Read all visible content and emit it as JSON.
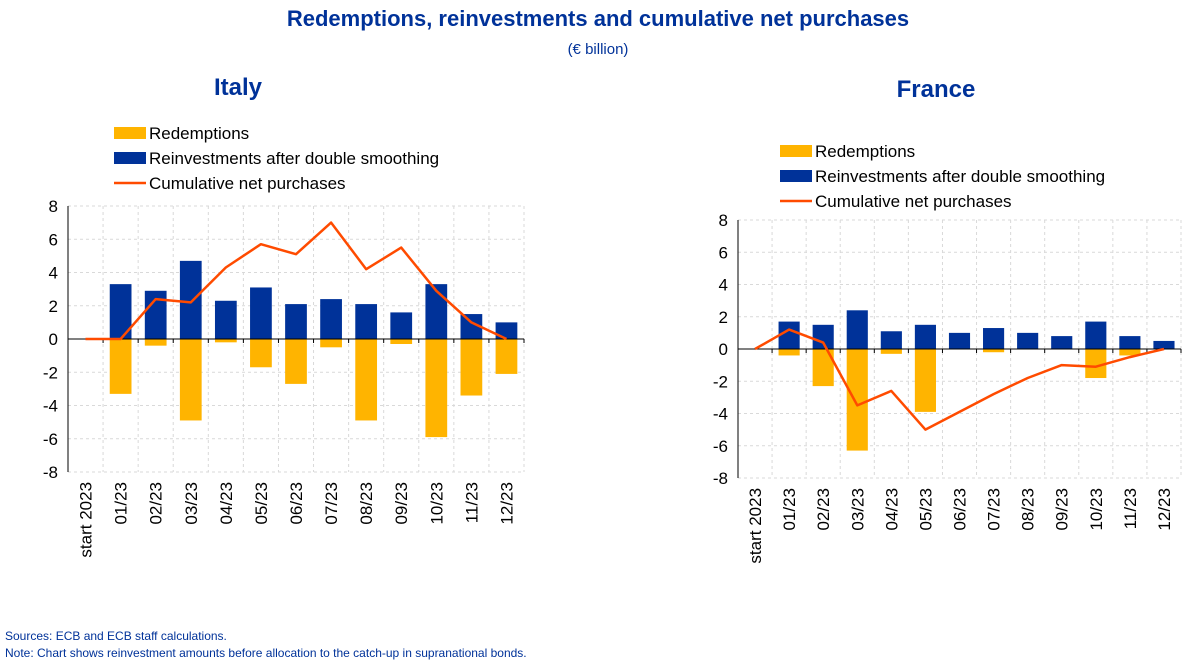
{
  "title": "Redemptions, reinvestments and cumulative net purchases",
  "subtitle": "(€ billion)",
  "colors": {
    "redemptions": "#FFB400",
    "reinvestments": "#003299",
    "cumulative": "#FF4B00",
    "text_blue": "#003299"
  },
  "footer": {
    "sources": "Sources: ECB and ECB staff calculations.",
    "note": "Note: Chart shows reinvestment amounts before allocation to the catch-up in supranational bonds."
  },
  "chart_data": [
    {
      "type": "bar",
      "title": "Italy",
      "categories": [
        "start 2023",
        "01/23",
        "02/23",
        "03/23",
        "04/23",
        "05/23",
        "06/23",
        "07/23",
        "08/23",
        "09/23",
        "10/23",
        "11/23",
        "12/23"
      ],
      "ylim": [
        -8,
        8
      ],
      "yticks": [
        8,
        6,
        4,
        2,
        0,
        -2,
        -4,
        -6,
        -8
      ],
      "grid": true,
      "legend_position": "top-left",
      "series": [
        {
          "name": "Redemptions",
          "kind": "bar",
          "values": [
            0,
            -3.3,
            -0.4,
            -4.9,
            -0.2,
            -1.7,
            -2.7,
            -0.5,
            -4.9,
            -0.3,
            -5.9,
            -3.4,
            -2.1
          ]
        },
        {
          "name": "Reinvestments after double smoothing",
          "kind": "bar",
          "values": [
            0,
            3.3,
            2.9,
            4.7,
            2.3,
            3.1,
            2.1,
            2.4,
            2.1,
            1.6,
            3.3,
            1.5,
            1.0
          ]
        },
        {
          "name": "Cumulative net purchases",
          "kind": "line",
          "values": [
            0,
            0,
            2.4,
            2.2,
            4.3,
            5.7,
            5.1,
            7.0,
            4.2,
            5.5,
            2.9,
            1.0,
            0
          ]
        }
      ]
    },
    {
      "type": "bar",
      "title": "France",
      "categories": [
        "start 2023",
        "01/23",
        "02/23",
        "03/23",
        "04/23",
        "05/23",
        "06/23",
        "07/23",
        "08/23",
        "09/23",
        "10/23",
        "11/23",
        "12/23"
      ],
      "ylim": [
        -8,
        8
      ],
      "yticks": [
        8,
        6,
        4,
        2,
        0,
        -2,
        -4,
        -6,
        -8
      ],
      "grid": true,
      "legend_position": "top-left",
      "series": [
        {
          "name": "Redemptions",
          "kind": "bar",
          "values": [
            0,
            -0.4,
            -2.3,
            -6.3,
            -0.3,
            -3.9,
            0,
            -0.2,
            0,
            0,
            -1.8,
            -0.4,
            0
          ]
        },
        {
          "name": "Reinvestments after double smoothing",
          "kind": "bar",
          "values": [
            0,
            1.7,
            1.5,
            2.4,
            1.1,
            1.5,
            1.0,
            1.3,
            1.0,
            0.8,
            1.7,
            0.8,
            0.5
          ]
        },
        {
          "name": "Cumulative net purchases",
          "kind": "line",
          "values": [
            0,
            1.2,
            0.4,
            -3.5,
            -2.6,
            -5.0,
            -3.9,
            -2.8,
            -1.8,
            -1.0,
            -1.1,
            -0.5,
            0
          ]
        }
      ]
    }
  ]
}
